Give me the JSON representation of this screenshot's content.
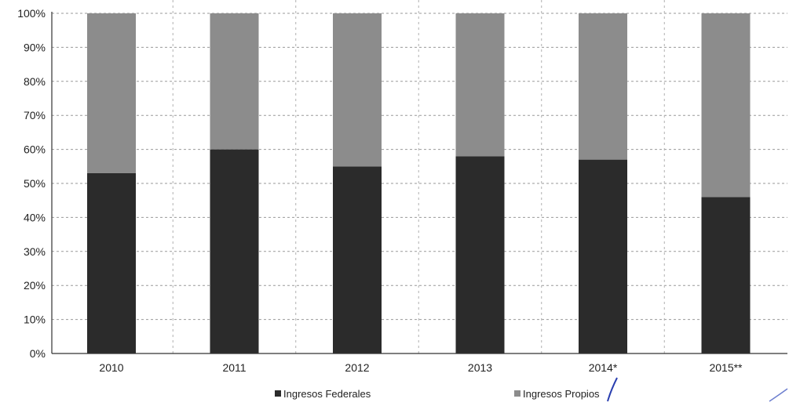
{
  "chart_data": {
    "type": "bar",
    "stacked": true,
    "categories": [
      "2010",
      "2011",
      "2012",
      "2013",
      "2014*",
      "2015**"
    ],
    "series": [
      {
        "name": "Ingresos Federales",
        "values": [
          53,
          60,
          55,
          58,
          57,
          46
        ],
        "color": "#2b2b2b"
      },
      {
        "name": "Ingresos Propios",
        "values": [
          47,
          40,
          45,
          42,
          43,
          54
        ],
        "color": "#8c8c8c"
      }
    ],
    "y_tick_labels": [
      "0%",
      "10%",
      "20%",
      "30%",
      "40%",
      "50%",
      "60%",
      "70%",
      "80%",
      "90%",
      "100%"
    ],
    "ylim": [
      0,
      100
    ],
    "grid": true,
    "legend_position": "bottom"
  }
}
